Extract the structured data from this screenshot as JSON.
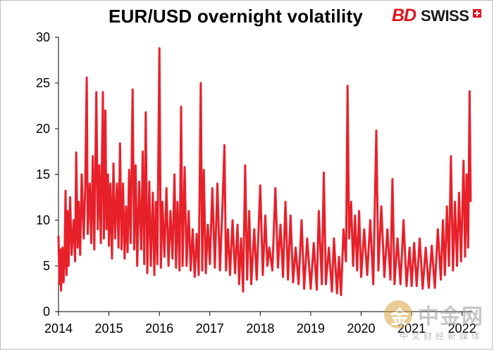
{
  "title": "EUR/USD overnight volatility",
  "brand": {
    "bd": "BD",
    "swiss": "SWISS",
    "cross_color": "#e0131c"
  },
  "watermark": {
    "main": "中金网",
    "sub": "中文财经新媒体",
    "icon": "coin-logo-icon"
  },
  "colors": {
    "series": "#e8202a",
    "axis": "#000000"
  },
  "chart_data": {
    "type": "line",
    "title": "EUR/USD overnight volatility",
    "xlabel": "",
    "ylabel": "",
    "xlim": [
      2014.0,
      2022.2
    ],
    "ylim": [
      0,
      30
    ],
    "yticks": [
      "0",
      "5",
      "10",
      "15",
      "20",
      "25",
      "30"
    ],
    "xticks": [
      "2014",
      "2015",
      "2016",
      "2017",
      "2018",
      "2019",
      "2020",
      "2021",
      "2022"
    ],
    "grid": false,
    "legend": "none",
    "series": [
      {
        "color": "#e8202a",
        "points": [
          [
            2014.0,
            8.3
          ],
          [
            2014.02,
            3.0
          ],
          [
            2014.04,
            6.8
          ],
          [
            2014.05,
            2.3
          ],
          [
            2014.08,
            7.0
          ],
          [
            2014.1,
            3.2
          ],
          [
            2014.12,
            5.5
          ],
          [
            2014.14,
            13.2
          ],
          [
            2014.16,
            4.0
          ],
          [
            2014.18,
            11.0
          ],
          [
            2014.2,
            5.0
          ],
          [
            2014.23,
            12.5
          ],
          [
            2014.26,
            6.2
          ],
          [
            2014.3,
            10.0
          ],
          [
            2014.33,
            5.5
          ],
          [
            2014.35,
            17.4
          ],
          [
            2014.38,
            7.0
          ],
          [
            2014.4,
            12.0
          ],
          [
            2014.43,
            6.2
          ],
          [
            2014.46,
            15.0
          ],
          [
            2014.5,
            8.0
          ],
          [
            2014.53,
            13.5
          ],
          [
            2014.56,
            25.6
          ],
          [
            2014.58,
            8.5
          ],
          [
            2014.62,
            14.0
          ],
          [
            2014.65,
            7.5
          ],
          [
            2014.68,
            17.0
          ],
          [
            2014.71,
            6.8
          ],
          [
            2014.75,
            24.0
          ],
          [
            2014.78,
            9.0
          ],
          [
            2014.81,
            16.0
          ],
          [
            2014.84,
            7.5
          ],
          [
            2014.88,
            24.0
          ],
          [
            2014.9,
            8.0
          ],
          [
            2014.93,
            22.0
          ],
          [
            2014.95,
            9.0
          ],
          [
            2014.98,
            15.0
          ],
          [
            2015.0,
            7.2
          ],
          [
            2015.03,
            14.0
          ],
          [
            2015.06,
            5.8
          ],
          [
            2015.09,
            16.2
          ],
          [
            2015.12,
            8.0
          ],
          [
            2015.16,
            14.0
          ],
          [
            2015.19,
            7.0
          ],
          [
            2015.22,
            18.4
          ],
          [
            2015.25,
            6.8
          ],
          [
            2015.28,
            14.0
          ],
          [
            2015.31,
            5.8
          ],
          [
            2015.34,
            11.5
          ],
          [
            2015.37,
            6.5
          ],
          [
            2015.4,
            15.5
          ],
          [
            2015.43,
            7.5
          ],
          [
            2015.47,
            24.3
          ],
          [
            2015.5,
            6.8
          ],
          [
            2015.53,
            16.0
          ],
          [
            2015.56,
            5.0
          ],
          [
            2015.6,
            14.2
          ],
          [
            2015.64,
            6.8
          ],
          [
            2015.67,
            17.5
          ],
          [
            2015.7,
            5.2
          ],
          [
            2015.73,
            21.8
          ],
          [
            2015.76,
            4.2
          ],
          [
            2015.8,
            14.2
          ],
          [
            2015.83,
            5.0
          ],
          [
            2015.87,
            13.0
          ],
          [
            2015.9,
            4.0
          ],
          [
            2015.93,
            12.0
          ],
          [
            2015.96,
            5.2
          ],
          [
            2016.0,
            28.8
          ],
          [
            2016.03,
            4.8
          ],
          [
            2016.06,
            12.0
          ],
          [
            2016.1,
            6.0
          ],
          [
            2016.14,
            13.5
          ],
          [
            2016.18,
            5.0
          ],
          [
            2016.22,
            11.0
          ],
          [
            2016.26,
            5.8
          ],
          [
            2016.3,
            15.0
          ],
          [
            2016.33,
            4.8
          ],
          [
            2016.36,
            12.0
          ],
          [
            2016.4,
            4.5
          ],
          [
            2016.43,
            22.4
          ],
          [
            2016.46,
            5.0
          ],
          [
            2016.5,
            15.8
          ],
          [
            2016.54,
            5.0
          ],
          [
            2016.58,
            11.0
          ],
          [
            2016.62,
            4.5
          ],
          [
            2016.66,
            9.0
          ],
          [
            2016.7,
            3.8
          ],
          [
            2016.74,
            8.5
          ],
          [
            2016.78,
            4.0
          ],
          [
            2016.82,
            25.0
          ],
          [
            2016.85,
            4.5
          ],
          [
            2016.88,
            15.5
          ],
          [
            2016.92,
            4.2
          ],
          [
            2016.96,
            9.5
          ],
          [
            2017.0,
            5.2
          ],
          [
            2017.05,
            13.5
          ],
          [
            2017.1,
            4.8
          ],
          [
            2017.15,
            14.0
          ],
          [
            2017.2,
            4.5
          ],
          [
            2017.25,
            11.5
          ],
          [
            2017.29,
            18.2
          ],
          [
            2017.32,
            4.5
          ],
          [
            2017.36,
            9.0
          ],
          [
            2017.4,
            4.0
          ],
          [
            2017.45,
            10.0
          ],
          [
            2017.5,
            4.2
          ],
          [
            2017.55,
            9.5
          ],
          [
            2017.58,
            3.0
          ],
          [
            2017.62,
            8.0
          ],
          [
            2017.66,
            2.2
          ],
          [
            2017.7,
            16.0
          ],
          [
            2017.74,
            3.5
          ],
          [
            2017.78,
            11.0
          ],
          [
            2017.82,
            3.0
          ],
          [
            2017.88,
            9.0
          ],
          [
            2017.93,
            3.5
          ],
          [
            2018.0,
            13.8
          ],
          [
            2018.05,
            4.0
          ],
          [
            2018.1,
            10.5
          ],
          [
            2018.14,
            5.0
          ],
          [
            2018.18,
            7.0
          ],
          [
            2018.24,
            4.5
          ],
          [
            2018.3,
            13.5
          ],
          [
            2018.35,
            4.8
          ],
          [
            2018.4,
            9.5
          ],
          [
            2018.45,
            3.8
          ],
          [
            2018.5,
            12.0
          ],
          [
            2018.55,
            3.5
          ],
          [
            2018.6,
            10.5
          ],
          [
            2018.65,
            3.2
          ],
          [
            2018.7,
            7.0
          ],
          [
            2018.76,
            3.0
          ],
          [
            2018.82,
            10.0
          ],
          [
            2018.87,
            2.5
          ],
          [
            2018.93,
            8.0
          ],
          [
            2019.0,
            2.5
          ],
          [
            2019.06,
            7.5
          ],
          [
            2019.12,
            2.4
          ],
          [
            2019.16,
            11.0
          ],
          [
            2019.22,
            3.0
          ],
          [
            2019.26,
            15.2
          ],
          [
            2019.3,
            3.0
          ],
          [
            2019.36,
            7.0
          ],
          [
            2019.42,
            2.2
          ],
          [
            2019.46,
            8.0
          ],
          [
            2019.52,
            2.0
          ],
          [
            2019.56,
            6.0
          ],
          [
            2019.6,
            1.8
          ],
          [
            2019.65,
            9.0
          ],
          [
            2019.7,
            5.5
          ],
          [
            2019.73,
            24.7
          ],
          [
            2019.76,
            8.0
          ],
          [
            2019.8,
            12.0
          ],
          [
            2019.84,
            5.0
          ],
          [
            2019.88,
            10.5
          ],
          [
            2019.92,
            4.5
          ],
          [
            2019.96,
            11.0
          ],
          [
            2020.0,
            3.8
          ],
          [
            2020.06,
            9.0
          ],
          [
            2020.12,
            4.0
          ],
          [
            2020.18,
            10.0
          ],
          [
            2020.24,
            3.0
          ],
          [
            2020.3,
            19.8
          ],
          [
            2020.34,
            4.5
          ],
          [
            2020.4,
            11.5
          ],
          [
            2020.46,
            3.8
          ],
          [
            2020.52,
            9.0
          ],
          [
            2020.58,
            3.5
          ],
          [
            2020.62,
            14.5
          ],
          [
            2020.66,
            3.0
          ],
          [
            2020.72,
            8.0
          ],
          [
            2020.78,
            3.0
          ],
          [
            2020.84,
            10.0
          ],
          [
            2020.9,
            2.8
          ],
          [
            2020.96,
            7.0
          ],
          [
            2021.0,
            2.8
          ],
          [
            2021.05,
            7.5
          ],
          [
            2021.1,
            2.8
          ],
          [
            2021.16,
            8.0
          ],
          [
            2021.22,
            2.5
          ],
          [
            2021.28,
            7.0
          ],
          [
            2021.34,
            2.6
          ],
          [
            2021.4,
            7.2
          ],
          [
            2021.46,
            2.6
          ],
          [
            2021.52,
            9.0
          ],
          [
            2021.58,
            3.5
          ],
          [
            2021.62,
            10.0
          ],
          [
            2021.66,
            4.0
          ],
          [
            2021.7,
            11.5
          ],
          [
            2021.74,
            5.0
          ],
          [
            2021.78,
            17.0
          ],
          [
            2021.82,
            4.5
          ],
          [
            2021.86,
            12.0
          ],
          [
            2021.9,
            5.0
          ],
          [
            2021.94,
            13.0
          ],
          [
            2021.98,
            5.5
          ],
          [
            2022.03,
            16.5
          ],
          [
            2022.06,
            6.0
          ],
          [
            2022.09,
            15.0
          ],
          [
            2022.12,
            7.0
          ],
          [
            2022.15,
            24.1
          ],
          [
            2022.17,
            12.0
          ]
        ]
      }
    ]
  }
}
